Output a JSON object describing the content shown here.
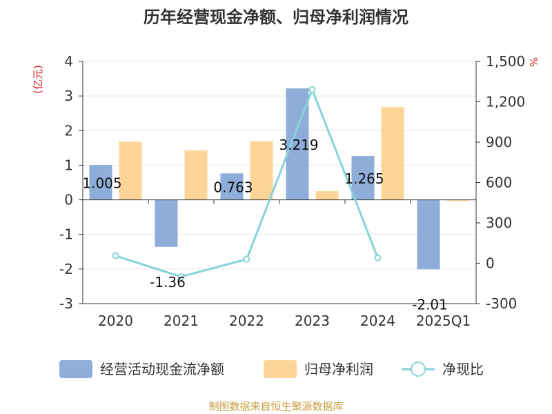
{
  "chart_data": {
    "type": "bar",
    "title": "历年经营现金净额、归母净利润情况",
    "categories": [
      "2020",
      "2021",
      "2022",
      "2023",
      "2024",
      "2025Q1"
    ],
    "y_left": {
      "unit": "(亿元)",
      "range": [
        -3,
        4
      ],
      "ticks": [
        "4",
        "3",
        "2",
        "1",
        "0",
        "-1",
        "-2",
        "-3"
      ]
    },
    "y_right": {
      "unit": "%",
      "range": [
        -300,
        1500
      ],
      "ticks": [
        "1,500",
        "1,200",
        "900",
        "600",
        "300",
        "0",
        "-300"
      ]
    },
    "series": [
      {
        "name": "经营活动现金流净额",
        "type": "bar",
        "axis": "left",
        "color": "#8eadd9",
        "values": [
          1.005,
          -1.36,
          0.763,
          3.219,
          1.265,
          -2.01
        ],
        "labels": [
          "1.005",
          "-1.36",
          "0.763",
          "3.219",
          "1.265",
          "-2.01"
        ]
      },
      {
        "name": "归母净利润",
        "type": "bar",
        "axis": "left",
        "color": "#fdd697",
        "values": [
          1.68,
          1.43,
          1.69,
          0.25,
          2.68,
          -0.02
        ]
      },
      {
        "name": "净现比",
        "type": "line",
        "axis": "right",
        "color": "#86d3d8",
        "values": [
          55,
          -100,
          30,
          1290,
          40,
          null
        ]
      }
    ],
    "legend_position": "bottom",
    "grid": "horizontal"
  },
  "footer": {
    "source": "制图数据来自恒生聚源数据库"
  }
}
